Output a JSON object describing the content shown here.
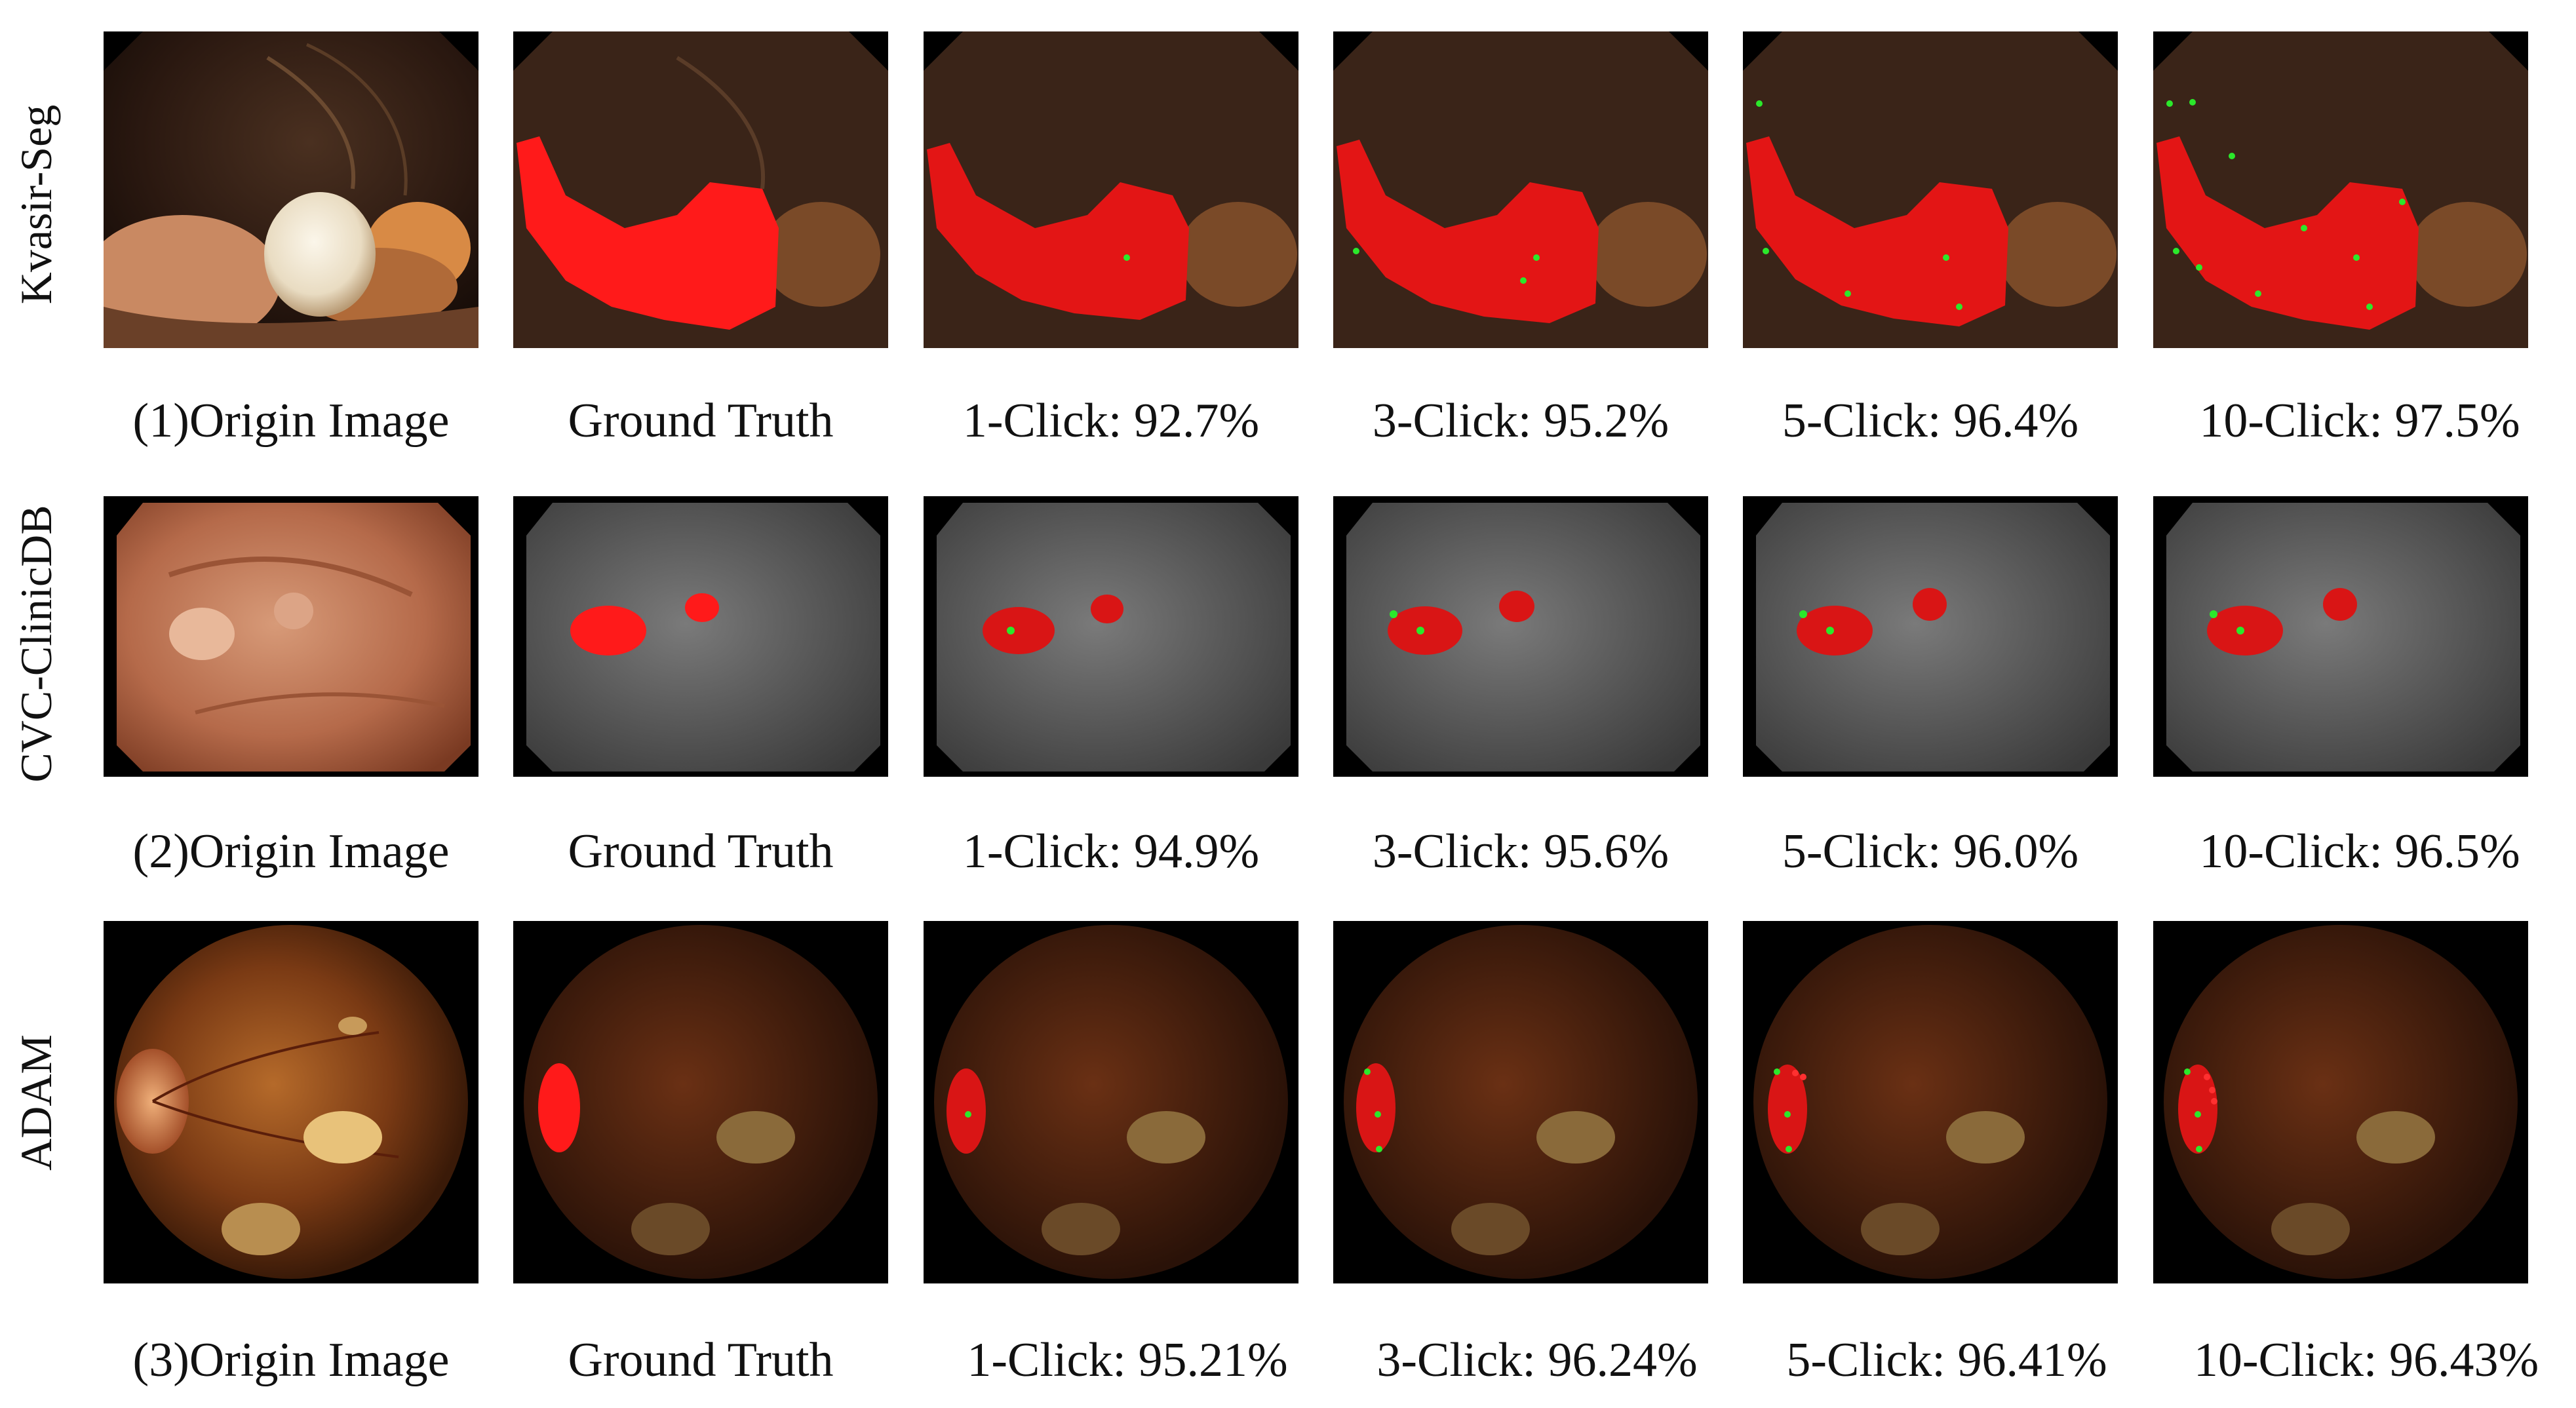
{
  "colors": {
    "mask_red": "#ff1a1a",
    "click_green": "#2be82b",
    "kvasir_tissue": "#7a4a2a",
    "clinic_tissue": "#b7684d",
    "adam_fundus": "#6a2e12",
    "background": "#000000"
  },
  "rows": [
    {
      "dataset": "Kvasir-Seg",
      "captions": [
        "(1)Origin Image",
        "Ground Truth",
        "1-Click: 92.7%",
        "3-Click: 95.2%",
        "5-Click: 96.4%",
        "10-Click: 97.5%"
      ]
    },
    {
      "dataset": "CVC-ClinicDB",
      "captions": [
        "(2)Origin Image",
        "Ground Truth",
        "1-Click: 94.9%",
        "3-Click: 95.6%",
        "5-Click: 96.0%",
        "10-Click: 96.5%"
      ]
    },
    {
      "dataset": "ADAM",
      "captions": [
        "(3)Origin Image",
        "Ground Truth",
        "1-Click: 95.21%",
        "3-Click: 96.24%",
        "5-Click: 96.41%",
        "10-Click: 96.43%"
      ]
    }
  ]
}
